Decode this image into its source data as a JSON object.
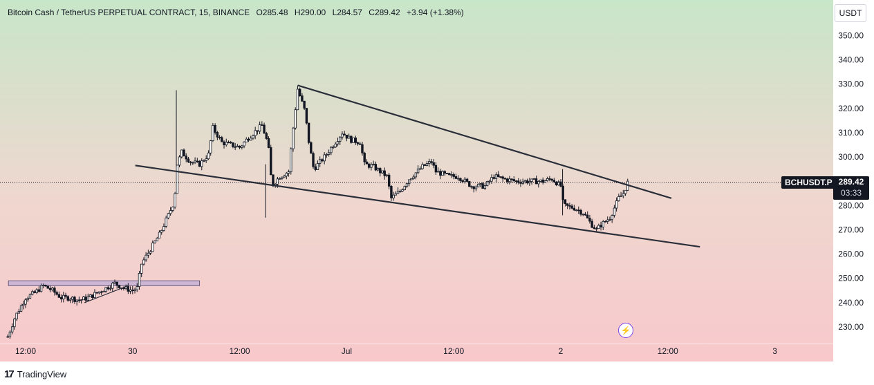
{
  "header": {
    "symbol_name": "Bitcoin Cash / TetherUS PERPETUAL CONTRACT, 15, BINANCE",
    "open": "O285.48",
    "high": "H290.00",
    "low": "L284.57",
    "close": "C289.42",
    "change": "+3.94 (+1.38%)"
  },
  "unit_badge": "USDT",
  "symbol_tag": "BCHUSDT.P",
  "price_tag": {
    "price": "289.42",
    "countdown": "03:33"
  },
  "brand": {
    "logo": "17",
    "name": "TradingView"
  },
  "colors": {
    "bg_top": "#c8e6c9",
    "bg_bottom": "#f8c8cb",
    "candle": "#131722",
    "trendline": "#2a2e39",
    "zone_fill": "#c5b3d6",
    "flash": "#7b3fe4"
  },
  "icons": [
    "flash-icon",
    "tradingview-logo-icon"
  ],
  "chart_data": {
    "type": "candlestick",
    "title": "Bitcoin Cash / TetherUS PERPETUAL CONTRACT, 15, BINANCE",
    "ylim": [
      222,
      356
    ],
    "y_ticks": [
      "230.00",
      "240.00",
      "250.00",
      "260.00",
      "270.00",
      "280.00",
      "290.00",
      "300.00",
      "310.00",
      "320.00",
      "330.00",
      "340.00",
      "350.00"
    ],
    "x_tick_labels": [
      "12:00",
      "30",
      "12:00",
      "Jul",
      "12:00",
      "2",
      "12:00",
      "3"
    ],
    "x_tick_times": [
      0,
      12,
      24,
      36,
      48,
      60,
      72,
      84
    ],
    "x_range": [
      -2,
      93
    ],
    "last_price": 289.42,
    "trendlines": [
      {
        "name": "upper",
        "t1": 30.5,
        "p1": 329.5,
        "t2": 72.4,
        "p2": 283
      },
      {
        "name": "lower",
        "t1": 12.3,
        "p1": 296.5,
        "t2": 75.6,
        "p2": 263
      },
      {
        "name": "zone-top",
        "t1": -2,
        "p1": 249,
        "t2": 19.5,
        "p2": 249
      },
      {
        "name": "zone-bottom",
        "t1": -2,
        "p1": 247,
        "t2": 19.5,
        "p2": 247
      },
      {
        "name": "minor",
        "t1": 6.6,
        "p1": 240,
        "t2": 11.5,
        "p2": 247
      }
    ],
    "anchors": [
      [
        -2,
        226
      ],
      [
        -1.2,
        234
      ],
      [
        0,
        242
      ],
      [
        1,
        244
      ],
      [
        2,
        247
      ],
      [
        3,
        245
      ],
      [
        4,
        242
      ],
      [
        5,
        242
      ],
      [
        6,
        241
      ],
      [
        7,
        242
      ],
      [
        8,
        244
      ],
      [
        9,
        246
      ],
      [
        10,
        248
      ],
      [
        11,
        246
      ],
      [
        12,
        245
      ],
      [
        12.5,
        246
      ],
      [
        13,
        256
      ],
      [
        14,
        262
      ],
      [
        15,
        268
      ],
      [
        16,
        276
      ],
      [
        16.7,
        282
      ],
      [
        16.9,
        296
      ],
      [
        17.5,
        302
      ],
      [
        18.5,
        298
      ],
      [
        19.5,
        297
      ],
      [
        20.5,
        301
      ],
      [
        21,
        312
      ],
      [
        22,
        306
      ],
      [
        23,
        305
      ],
      [
        24,
        304
      ],
      [
        25,
        308
      ],
      [
        26.5,
        313
      ],
      [
        27.2,
        305
      ],
      [
        27.6,
        288
      ],
      [
        28.5,
        292
      ],
      [
        29.5,
        294
      ],
      [
        30,
        312
      ],
      [
        30.5,
        328
      ],
      [
        31.3,
        319
      ],
      [
        31.8,
        305
      ],
      [
        32.3,
        295
      ],
      [
        33.5,
        300
      ],
      [
        34.5,
        305
      ],
      [
        35.5,
        310
      ],
      [
        36.5,
        307
      ],
      [
        37.5,
        306
      ],
      [
        38,
        297
      ],
      [
        39,
        296
      ],
      [
        40.5,
        292
      ],
      [
        41,
        283
      ],
      [
        42,
        286
      ],
      [
        43,
        291
      ],
      [
        44.5,
        296
      ],
      [
        45.5,
        298
      ],
      [
        46,
        294
      ],
      [
        47.5,
        292
      ],
      [
        48.5,
        292
      ],
      [
        50,
        288
      ],
      [
        51.5,
        288
      ],
      [
        52.5,
        292
      ],
      [
        53.5,
        291
      ],
      [
        55,
        290
      ],
      [
        56.5,
        290
      ],
      [
        58,
        290
      ],
      [
        59,
        291
      ],
      [
        60,
        288
      ],
      [
        60.3,
        280
      ],
      [
        61.5,
        279
      ],
      [
        62.5,
        277
      ],
      [
        63.5,
        272
      ],
      [
        64,
        270
      ],
      [
        64.5,
        272
      ],
      [
        65.5,
        275
      ],
      [
        66.5,
        283
      ],
      [
        67,
        285
      ],
      [
        67.5,
        289.42
      ]
    ]
  }
}
